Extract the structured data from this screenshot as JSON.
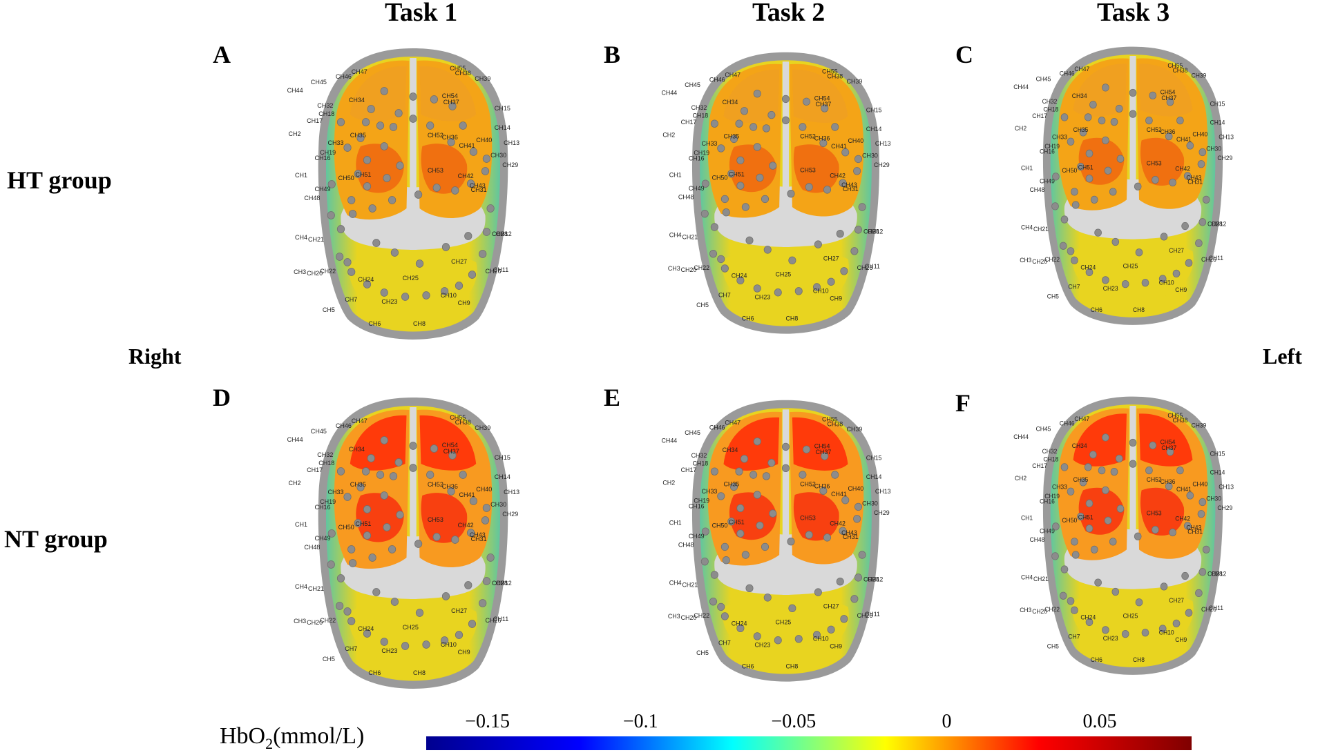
{
  "tasks": [
    "Task 1",
    "Task 2",
    "Task 3"
  ],
  "groups": [
    "HT group",
    "NT group"
  ],
  "sides": {
    "right": "Right",
    "left": "Left"
  },
  "panels": [
    "A",
    "B",
    "C",
    "D",
    "E",
    "F"
  ],
  "channels": [
    "CH1",
    "CH2",
    "CH3",
    "CH4",
    "CH5",
    "CH6",
    "CH7",
    "CH8",
    "CH9",
    "CH10",
    "CH11",
    "CH12",
    "CH13",
    "CH14",
    "CH15",
    "CH16",
    "CH17",
    "CH18",
    "CH19",
    "CH20",
    "CH21",
    "CH22",
    "CH23",
    "CH24",
    "CH25",
    "CH26",
    "CH27",
    "CH28",
    "CH29",
    "CH30",
    "CH31",
    "CH32",
    "CH33",
    "CH34",
    "CH35",
    "CH36",
    "CH37",
    "CH38",
    "CH39",
    "CH40",
    "CH41",
    "CH42",
    "CH43",
    "CH44",
    "CH45",
    "CH46",
    "CH47",
    "CH48",
    "CH49",
    "CH50",
    "CH51",
    "CH52",
    "CH53",
    "CH54",
    "CH55"
  ],
  "colorbar": {
    "title_main": "HbO",
    "title_sub": "2",
    "title_unit": "(mmol/L)",
    "ticks": [
      "−0.15",
      "−0.1",
      "−0.05",
      "0",
      "0.05"
    ],
    "range": [
      -0.17,
      0.08
    ],
    "tick_values": [
      -0.15,
      -0.1,
      -0.05,
      0,
      0.05
    ],
    "colormap": [
      "#00008f",
      "#0000ff",
      "#00ffff",
      "#ffff00",
      "#ff0000",
      "#800000"
    ]
  },
  "region_colors": {
    "prefrontal_HT": "#f0a020",
    "prefrontal_NT": "#ff3a0a",
    "frontal_HT": "#f07010",
    "frontal_NT": "#f84010",
    "motor_HT": "#f4a417",
    "motor_NT": "#f89a20",
    "temporal_edge": "#60c6a0",
    "occipital": "#e8d420",
    "gray_cortex": "#d9d9d9",
    "skull": "#9a9a9a"
  }
}
